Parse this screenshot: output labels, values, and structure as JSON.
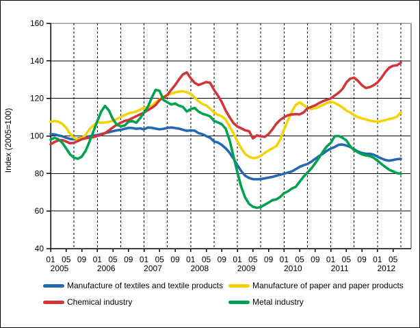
{
  "chart_data": {
    "type": "line",
    "title": "",
    "ylabel": "Index (2005=100)",
    "ylim": [
      40,
      160
    ],
    "ytick_step": 20,
    "x_start_month": "2005-01",
    "x_end_month": "2012-07",
    "x_years": [
      "2005",
      "2006",
      "2007",
      "2008",
      "2009",
      "2010",
      "2011",
      "2012"
    ],
    "x_month_tick_labels": [
      "01",
      "05",
      "09"
    ],
    "x_labels_2012": [
      "01",
      "05"
    ],
    "grid": {
      "horizontal": "solid",
      "vertical": "dashed every 6 months"
    },
    "legend_position": "bottom",
    "frame_gray_color": "#9b9b9b",
    "series": [
      {
        "name": "Manufacture of textiles and textile products",
        "color": "#2368b0",
        "values": [
          101,
          100.8,
          100.3,
          99.8,
          99,
          98.4,
          98.2,
          98.6,
          99,
          99.4,
          99.8,
          100.2,
          100.5,
          101,
          101.5,
          102,
          102.5,
          103,
          103.2,
          103.8,
          104.3,
          104.2,
          103.8,
          104,
          103.5,
          104.5,
          104.3,
          103.9,
          103.5,
          103.8,
          104.3,
          104.5,
          104.2,
          103.9,
          103.3,
          102.7,
          103,
          102.8,
          101.5,
          100.9,
          99.9,
          99,
          97.1,
          96.5,
          95.2,
          93.4,
          91,
          87.9,
          84.3,
          81.2,
          78.8,
          77.6,
          77,
          76.9,
          77,
          77.4,
          77.8,
          78.2,
          78.8,
          79.3,
          79.9,
          80.5,
          81.1,
          82.3,
          83.5,
          84.4,
          85.1,
          86.3,
          87.8,
          89.3,
          90.5,
          92.1,
          93.3,
          94.1,
          95.3,
          95.4,
          94.9,
          94.1,
          92.9,
          91.7,
          90.9,
          90.5,
          90.5,
          90,
          89,
          88,
          87.2,
          86.8,
          87.2,
          87.6,
          87.8
        ]
      },
      {
        "name": "Manufacture of paper and paper products",
        "color": "#f3d403",
        "values": [
          107.5,
          108,
          107.5,
          106.5,
          104.3,
          101.2,
          99,
          98.2,
          98.8,
          100.6,
          103.7,
          105.5,
          107.3,
          107,
          107.2,
          107.5,
          108,
          109,
          110,
          111,
          112,
          112.5,
          113,
          114,
          115,
          115.5,
          116,
          118,
          119.5,
          121,
          121.8,
          122.5,
          123.2,
          123.6,
          123.8,
          123.2,
          122.5,
          120.5,
          118.5,
          117,
          116.2,
          114.5,
          112.5,
          111.2,
          110.5,
          108.7,
          105,
          101.3,
          97.1,
          93.4,
          90.4,
          88.9,
          88.2,
          88.4,
          89.4,
          91,
          92.2,
          93.4,
          94.6,
          98,
          103.5,
          108.5,
          113,
          116.5,
          117.8,
          116.5,
          115,
          114.3,
          114.8,
          115.5,
          116.5,
          117.5,
          118.2,
          117.6,
          116.5,
          115.2,
          113.5,
          112.5,
          111,
          110,
          109.3,
          108.8,
          108.2,
          107.8,
          107.6,
          107.9,
          108.4,
          109,
          109.4,
          110.2,
          112.4
        ]
      },
      {
        "name": "Chemical industry",
        "color": "#d23539",
        "values": [
          95.5,
          96.8,
          97.6,
          97.8,
          97,
          96.1,
          96.3,
          97.3,
          98.2,
          98.8,
          99,
          99.4,
          100,
          100.5,
          101.5,
          103,
          104.5,
          106,
          107,
          108,
          108.5,
          109.5,
          110.5,
          111.5,
          112.4,
          113.7,
          114.9,
          116.5,
          119.1,
          120.4,
          121.8,
          124.6,
          127.1,
          130.1,
          132.8,
          133.8,
          130.7,
          128.3,
          127.1,
          127.9,
          128.7,
          128.3,
          124.5,
          121.5,
          118,
          113.5,
          110,
          106.8,
          105,
          104,
          103,
          102.5,
          98.7,
          100.3,
          99.8,
          99.5,
          101,
          103.5,
          106.5,
          108.5,
          110,
          111,
          111.4,
          111.6,
          111.5,
          112.5,
          114.7,
          115.5,
          116.3,
          117.5,
          118.5,
          119.3,
          120,
          121.5,
          123,
          125,
          128.5,
          130.5,
          131,
          129.3,
          127,
          125.5,
          126,
          127,
          128.5,
          131,
          134,
          136.3,
          137.4,
          137.6,
          139
        ]
      },
      {
        "name": "Metal industry",
        "color": "#00a150",
        "values": [
          98,
          99,
          98.2,
          96.3,
          93.3,
          90.2,
          88.4,
          87.8,
          89,
          92.1,
          97,
          102.4,
          107.9,
          113,
          116,
          113.5,
          109,
          106,
          105.1,
          105.5,
          107.5,
          108,
          107,
          109.4,
          112.4,
          115.5,
          120.4,
          124.6,
          124,
          119.1,
          117.9,
          116.7,
          117.3,
          116.1,
          115.5,
          113,
          114.3,
          114.9,
          113,
          111.8,
          111.2,
          110.4,
          108,
          107.2,
          106.2,
          103.8,
          97.7,
          89.1,
          80.6,
          72.7,
          67.2,
          63.8,
          62.3,
          61.7,
          62.1,
          63.3,
          64.5,
          65.8,
          66.2,
          67.5,
          69.5,
          70.5,
          72,
          72.9,
          75.6,
          78.3,
          80.5,
          82.7,
          85.4,
          88.4,
          91.7,
          94.5,
          96.3,
          99.8,
          100,
          99,
          97.6,
          94.5,
          92.4,
          91.2,
          90.2,
          89.6,
          89.3,
          88.4,
          86.8,
          85.1,
          83.5,
          82,
          81.1,
          80.2,
          79.9
        ]
      }
    ]
  }
}
